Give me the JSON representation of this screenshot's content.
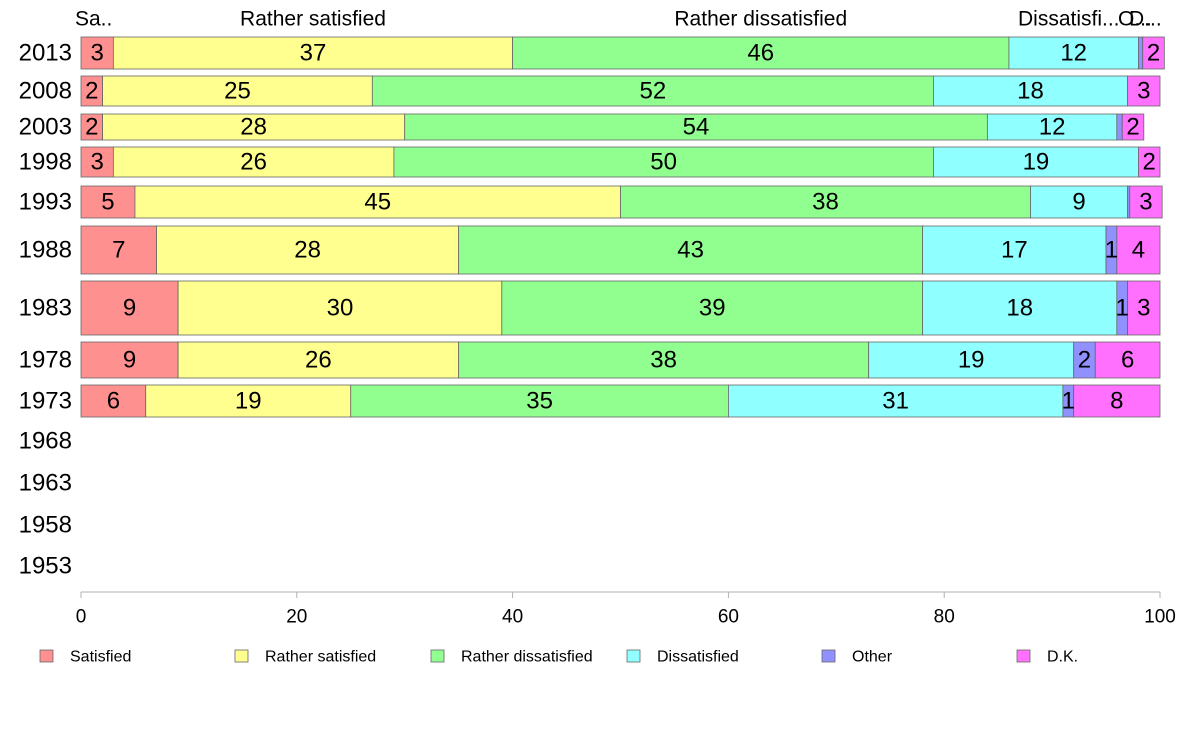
{
  "chart_data": {
    "type": "bar",
    "orientation": "horizontal",
    "stacked": true,
    "title": "",
    "xlabel": "",
    "ylabel": "",
    "xlim": [
      0,
      100
    ],
    "x_ticks": [
      "0",
      "20",
      "40",
      "60",
      "80",
      "100"
    ],
    "grid": false,
    "legend_position": "bottom",
    "bar_widths_vary": true,
    "categories": [
      "2013",
      "2008",
      "2003",
      "1998",
      "1993",
      "1988",
      "1983",
      "1978",
      "1973",
      "1968",
      "1963",
      "1958",
      "1953"
    ],
    "series": [
      {
        "name": "Satisfied",
        "color": "#ff9090",
        "values": [
          3,
          2,
          2,
          3,
          5,
          7,
          9,
          9,
          6,
          null,
          null,
          null,
          null
        ]
      },
      {
        "name": "Rather satisfied",
        "color": "#ffff90",
        "values": [
          37,
          25,
          28,
          26,
          45,
          28,
          30,
          26,
          19,
          null,
          null,
          null,
          null
        ]
      },
      {
        "name": "Rather dissatisfied",
        "color": "#90ff90",
        "values": [
          46,
          52,
          54,
          50,
          38,
          43,
          39,
          38,
          35,
          null,
          null,
          null,
          null
        ]
      },
      {
        "name": "Dissatisfied",
        "color": "#90ffff",
        "values": [
          12,
          18,
          12,
          19,
          9,
          17,
          18,
          19,
          31,
          null,
          null,
          null,
          null
        ]
      },
      {
        "name": "Other",
        "color": "#9090ff",
        "values": [
          0.4,
          0,
          0.5,
          0,
          0.2,
          1,
          1,
          2,
          1,
          null,
          null,
          null,
          null
        ]
      },
      {
        "name": "D.K.",
        "color": "#ff70ff",
        "values": [
          2,
          3,
          2,
          2,
          3,
          4,
          3,
          6,
          8,
          null,
          null,
          null,
          null
        ]
      }
    ],
    "segment_labels": [
      [
        "3",
        "37",
        "46",
        "12",
        "",
        "2"
      ],
      [
        "2",
        "25",
        "52",
        "18",
        "",
        "3"
      ],
      [
        "2",
        "28",
        "54",
        "12",
        "",
        "2"
      ],
      [
        "3",
        "26",
        "50",
        "19",
        "",
        "2"
      ],
      [
        "5",
        "45",
        "38",
        "9",
        "",
        "3"
      ],
      [
        "7",
        "28",
        "43",
        "17",
        "1",
        "4"
      ],
      [
        "9",
        "30",
        "39",
        "18",
        "1",
        "3"
      ],
      [
        "9",
        "26",
        "38",
        "19",
        "2",
        "6"
      ],
      [
        "6",
        "19",
        "35",
        "31",
        "1",
        "8"
      ]
    ],
    "top_labels": [
      "Sa..",
      "Rather satisfied",
      "Rather dissatisfied",
      "Dissatisfi...",
      "O...",
      "D..."
    ]
  }
}
